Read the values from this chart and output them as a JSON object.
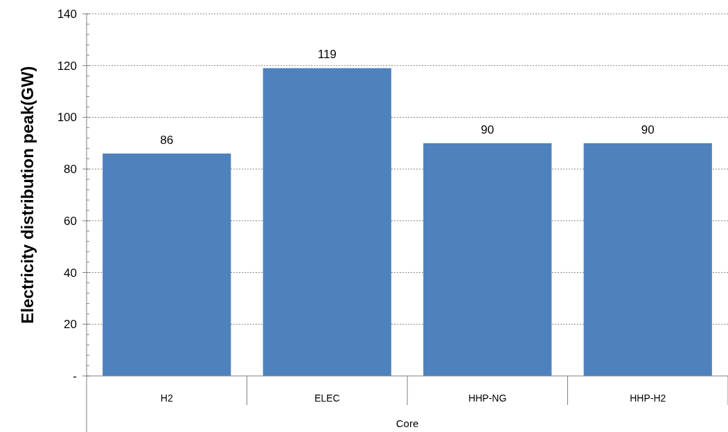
{
  "chart_data": {
    "type": "bar",
    "ylabel": "Electricity distribution peak(GW)",
    "xlabel": "Core",
    "categories": [
      "H2",
      "ELEC",
      "HHP-NG",
      "HHP-H2"
    ],
    "values": [
      86,
      119,
      90,
      90
    ],
    "color": "#4f81bd",
    "ylim": [
      0,
      140
    ],
    "yticks": [
      {
        "value": 0,
        "label": "-"
      },
      20,
      40,
      60,
      80,
      100,
      120,
      140
    ],
    "grid": "y",
    "data_labels": true
  }
}
